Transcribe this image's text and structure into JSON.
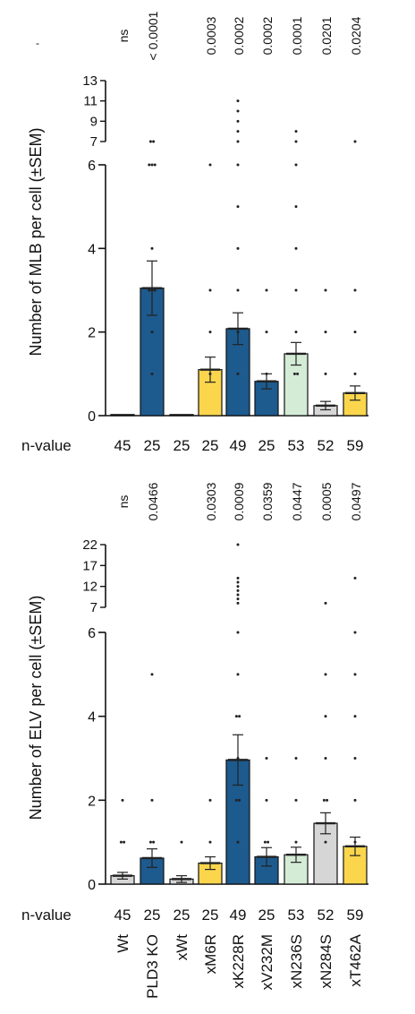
{
  "colors": {
    "gray": "#d6d6d6",
    "blue": "#1d5a8e",
    "yellow": "#fbd64d",
    "green": "#d4ecd6",
    "axis": "#111111",
    "dot": "#222222",
    "error": "#222222"
  },
  "categories": [
    "Wt",
    "PLD3 KO",
    "xWt",
    "xM6R",
    "xK228R",
    "xV232M",
    "xN236S",
    "xN284S",
    "xT462A"
  ],
  "bar_colors": [
    "gray",
    "blue",
    "gray",
    "yellow",
    "blue",
    "blue",
    "green",
    "gray",
    "yellow"
  ],
  "n_label": "n-value",
  "n_values": [
    "45",
    "25",
    "25",
    "25",
    "49",
    "25",
    "53",
    "52",
    "59"
  ],
  "chart_data": [
    {
      "type": "bar",
      "ylabel": "Number of MLB per cell (±SEM)",
      "categories": [
        "Wt",
        "PLD3 KO",
        "xWt",
        "xM6R",
        "xK228R",
        "xV232M",
        "xN236S",
        "xN284S",
        "xT462A"
      ],
      "values": [
        0,
        3.05,
        0,
        1.1,
        2.08,
        0.82,
        1.48,
        0.24,
        0.54
      ],
      "sem": [
        0,
        0.65,
        0,
        0.3,
        0.38,
        0.18,
        0.27,
        0.1,
        0.17
      ],
      "pvalues": [
        "ns",
        "< 0.0001",
        "",
        "0.0003",
        "0.0002",
        "0.0002",
        "0.0001",
        "0.0201",
        "0.0204"
      ],
      "ylim": [
        0,
        13
      ],
      "axis_break": [
        6,
        7
      ],
      "yticks_lower": [
        "0",
        "2",
        "4",
        "6"
      ],
      "yticks_upper": [
        "7",
        "9",
        "11",
        "13"
      ],
      "points": [
        [],
        [
          1,
          2,
          3,
          3,
          3,
          4,
          6,
          6,
          6,
          7,
          7
        ],
        [],
        [
          1,
          2,
          3,
          6
        ],
        [
          1,
          2,
          3,
          4,
          5,
          6,
          7,
          8,
          9,
          10,
          11
        ],
        [
          1,
          2,
          3
        ],
        [
          1,
          1,
          2,
          3,
          4,
          5,
          6,
          7,
          8
        ],
        [
          1,
          2,
          3
        ],
        [
          1,
          2,
          3,
          7
        ]
      ]
    },
    {
      "type": "bar",
      "ylabel": "Number of ELV per cell (±SEM)",
      "categories": [
        "Wt",
        "PLD3 KO",
        "xWt",
        "xM6R",
        "xK228R",
        "xV232M",
        "xN236S",
        "xN284S",
        "xT462A"
      ],
      "values": [
        0.2,
        0.62,
        0.12,
        0.5,
        2.96,
        0.65,
        0.7,
        1.45,
        0.9
      ],
      "sem": [
        0.08,
        0.22,
        0.08,
        0.15,
        0.6,
        0.22,
        0.18,
        0.25,
        0.22
      ],
      "pvalues": [
        "ns",
        "0.0466",
        "",
        "0.0303",
        "0.0009",
        "0.0359",
        "0.0447",
        "0.0005",
        "0.0497"
      ],
      "ylim": [
        0,
        22
      ],
      "axis_break": [
        6,
        7
      ],
      "yticks_lower": [
        "0",
        "2",
        "4",
        "6"
      ],
      "yticks_upper": [
        "7",
        "12",
        "17",
        "22"
      ],
      "points": [
        [
          1,
          1,
          2
        ],
        [
          1,
          1,
          2,
          5
        ],
        [
          1
        ],
        [
          1,
          2
        ],
        [
          1,
          2,
          2,
          3,
          4,
          4,
          5,
          6,
          8,
          9,
          10,
          11,
          12,
          13,
          14,
          22
        ],
        [
          1,
          1,
          2,
          3
        ],
        [
          1,
          2,
          3
        ],
        [
          1,
          2,
          2,
          3,
          4,
          5,
          8
        ],
        [
          1,
          2,
          3,
          4,
          5,
          6,
          14
        ]
      ]
    }
  ]
}
